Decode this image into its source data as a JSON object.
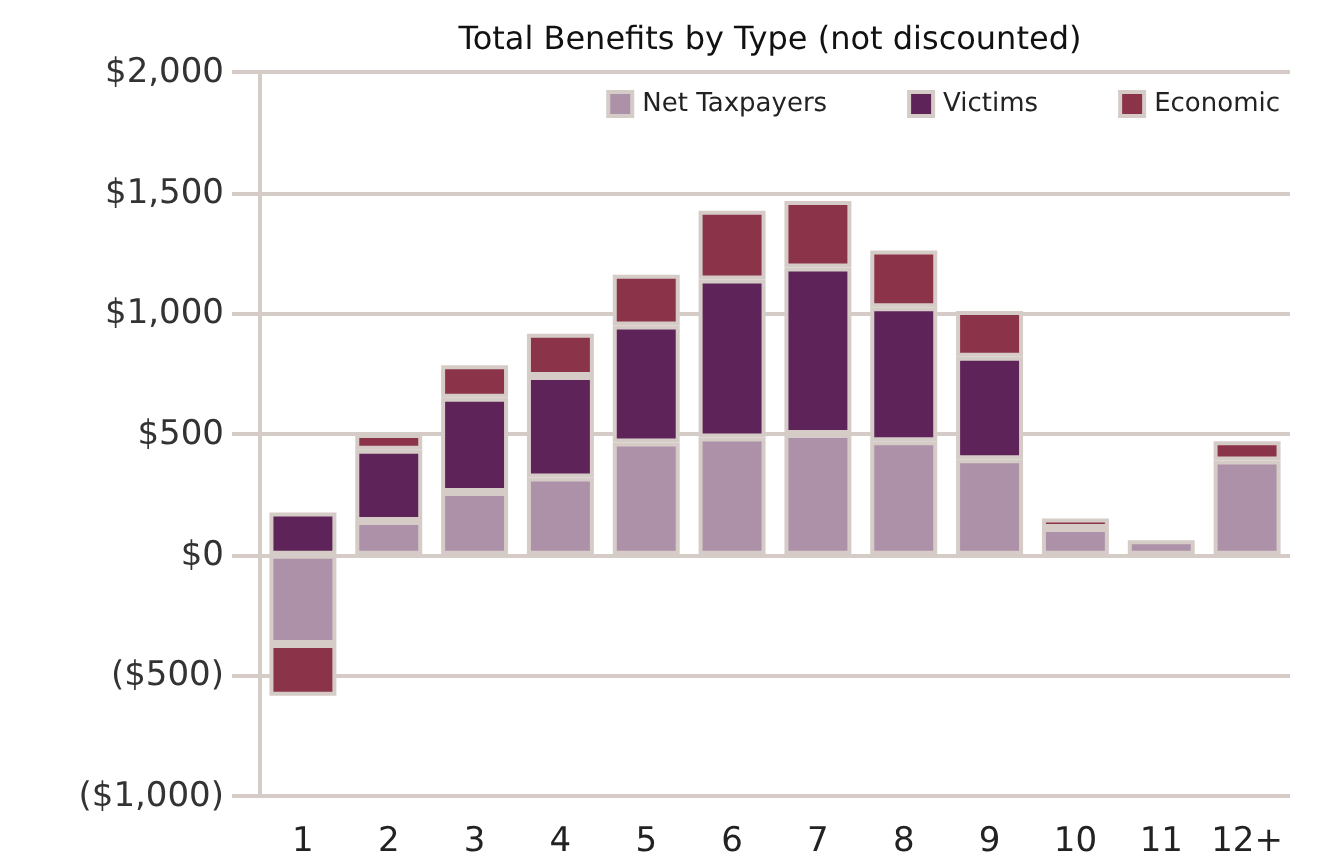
{
  "chart_data": {
    "type": "bar",
    "title": "Total Benefits by Type (not discounted)",
    "stacked": true,
    "categories": [
      "1",
      "2",
      "3",
      "4",
      "5",
      "6",
      "7",
      "8",
      "9",
      "10",
      "11",
      "12+"
    ],
    "series": [
      {
        "name": "Net Taxpayers",
        "color": "#ad91a8",
        "values": [
          -370,
          140,
          260,
          320,
          465,
          485,
          500,
          470,
          395,
          110,
          60,
          390
        ]
      },
      {
        "name": "Victims",
        "color": "#5e2459",
        "values": [
          175,
          295,
          390,
          420,
          485,
          655,
          690,
          555,
          425,
          null,
          null,
          null
        ]
      },
      {
        "name": "Economic",
        "color": "#8b3349",
        "values": [
          -215,
          65,
          135,
          175,
          210,
          285,
          275,
          235,
          190,
          40,
          null,
          80
        ]
      }
    ],
    "ylim": [
      -1000,
      2000
    ],
    "yticks": [
      {
        "value": -1000,
        "label": "($1,000)"
      },
      {
        "value": -500,
        "label": "($500)"
      },
      {
        "value": 0,
        "label": "$0"
      },
      {
        "value": 500,
        "label": "$500"
      },
      {
        "value": 1000,
        "label": "$1,000"
      },
      {
        "value": 1500,
        "label": "$1,500"
      },
      {
        "value": 2000,
        "label": "$2,000"
      }
    ],
    "grid": "y",
    "legend": "top right"
  }
}
